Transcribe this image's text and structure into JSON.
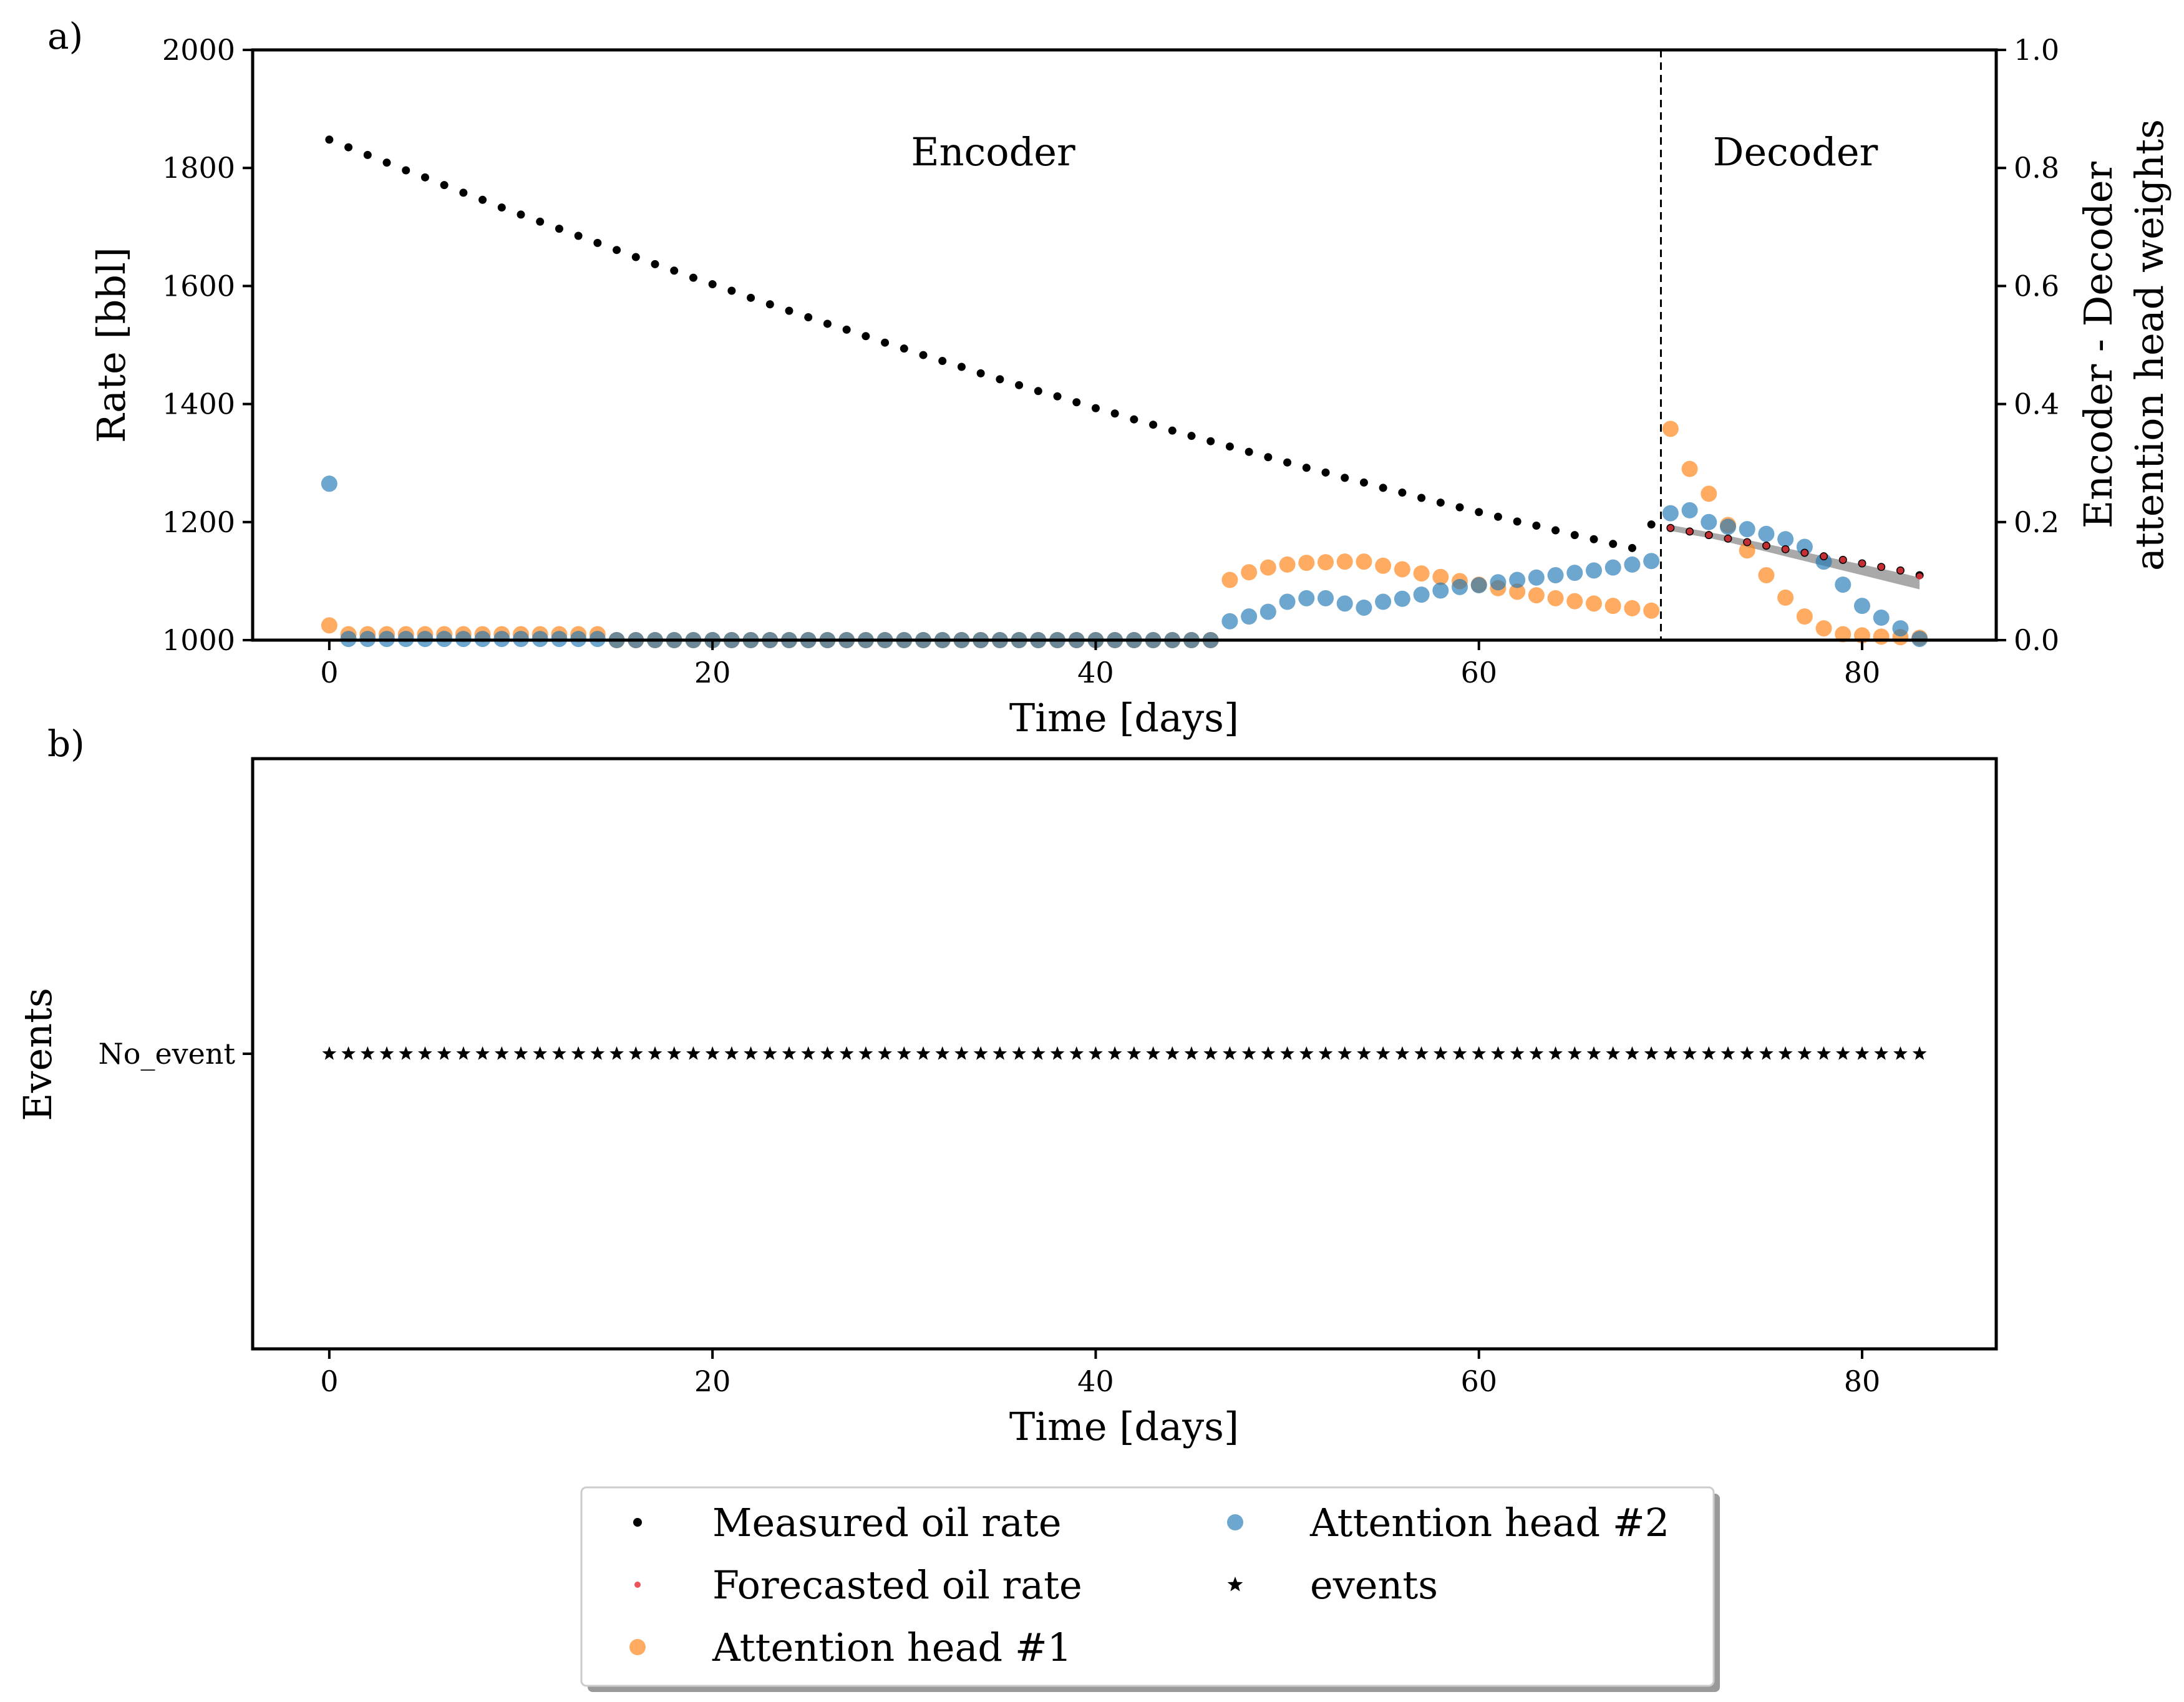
{
  "figure": {
    "panel_a_label": "a)",
    "panel_b_label": "b)"
  },
  "chart_data": [
    {
      "type": "scatter",
      "panel": "a",
      "xlabel": "Time [days]",
      "ylabel": "Rate [bbl]",
      "y2label_line1": "Encoder - Decoder",
      "y2label_line2": "attention head weights",
      "xlim": [
        -4,
        87
      ],
      "ylim": [
        1000,
        2000
      ],
      "y2lim": [
        0.0,
        1.0
      ],
      "xticks": [
        "0",
        "20",
        "40",
        "60",
        "80"
      ],
      "yticks": [
        "1000",
        "1200",
        "1400",
        "1600",
        "1800",
        "2000"
      ],
      "y2ticks": [
        "0.0",
        "0.2",
        "0.4",
        "0.6",
        "0.8",
        "1.0"
      ],
      "encoder_label": "Encoder",
      "decoder_label": "Decoder",
      "encoder_decoder_boundary_x": 69.5,
      "series": [
        {
          "name": "Measured oil rate",
          "axis": "left",
          "color": "#000000",
          "marker": "dot",
          "x": [
            0,
            1,
            2,
            3,
            4,
            5,
            6,
            7,
            8,
            9,
            10,
            11,
            12,
            13,
            14,
            15,
            16,
            17,
            18,
            19,
            20,
            21,
            22,
            23,
            24,
            25,
            26,
            27,
            28,
            29,
            30,
            31,
            32,
            33,
            34,
            35,
            36,
            37,
            38,
            39,
            40,
            41,
            42,
            43,
            44,
            45,
            46,
            47,
            48,
            49,
            50,
            51,
            52,
            53,
            54,
            55,
            56,
            57,
            58,
            59,
            60,
            61,
            62,
            63,
            64,
            65,
            66,
            67,
            68,
            69,
            70,
            71,
            72,
            73,
            74,
            75,
            76,
            77,
            78,
            79,
            80,
            81,
            82,
            83
          ],
          "y": [
            1848,
            1835,
            1822,
            1809,
            1796,
            1784,
            1771,
            1758,
            1746,
            1733,
            1721,
            1709,
            1697,
            1685,
            1673,
            1661,
            1649,
            1637,
            1626,
            1614,
            1603,
            1592,
            1580,
            1569,
            1558,
            1547,
            1536,
            1526,
            1515,
            1504,
            1494,
            1483,
            1473,
            1463,
            1452,
            1442,
            1432,
            1422,
            1413,
            1403,
            1393,
            1384,
            1374,
            1365,
            1355,
            1346,
            1337,
            1328,
            1319,
            1310,
            1301,
            1292,
            1284,
            1275,
            1267,
            1258,
            1250,
            1241,
            1233,
            1225,
            1217,
            1209,
            1201,
            1194,
            1186,
            1178,
            1171,
            1163,
            1156,
            1196,
            1190,
            1184,
            1178,
            1172,
            1166,
            1160,
            1154,
            1148,
            1142,
            1136,
            1130,
            1124,
            1118,
            1110
          ]
        },
        {
          "name": "Forecasted oil rate",
          "axis": "left",
          "color": "#e8363b",
          "marker": "dot",
          "x": [
            70,
            71,
            72,
            73,
            74,
            75,
            76,
            77,
            78,
            79,
            80,
            81,
            82,
            83
          ],
          "y": [
            1190,
            1184,
            1178,
            1172,
            1166,
            1160,
            1154,
            1148,
            1142,
            1136,
            1130,
            1124,
            1118,
            1108
          ],
          "band_upper": [
            1195,
            1189,
            1183,
            1177,
            1170,
            1163,
            1156,
            1149,
            1142,
            1135,
            1128,
            1121,
            1114,
            1106
          ],
          "band_lower": [
            1185,
            1179,
            1173,
            1166,
            1158,
            1150,
            1142,
            1134,
            1126,
            1118,
            1110,
            1102,
            1094,
            1086
          ]
        },
        {
          "name": "Attention head #1",
          "axis": "right",
          "color": "#ff7f0e",
          "marker": "circle",
          "x": [
            0,
            1,
            2,
            3,
            4,
            5,
            6,
            7,
            8,
            9,
            10,
            11,
            12,
            13,
            14,
            15,
            16,
            17,
            18,
            19,
            20,
            21,
            22,
            23,
            24,
            25,
            26,
            27,
            28,
            29,
            30,
            31,
            32,
            33,
            34,
            35,
            36,
            37,
            38,
            39,
            40,
            41,
            42,
            43,
            44,
            45,
            46,
            47,
            48,
            49,
            50,
            51,
            52,
            53,
            54,
            55,
            56,
            57,
            58,
            59,
            60,
            61,
            62,
            63,
            64,
            65,
            66,
            67,
            68,
            69,
            70,
            71,
            72,
            73,
            74,
            75,
            76,
            77,
            78,
            79,
            80,
            81,
            82,
            83
          ],
          "y": [
            0.025,
            0.01,
            0.01,
            0.01,
            0.01,
            0.01,
            0.01,
            0.01,
            0.01,
            0.01,
            0.01,
            0.01,
            0.01,
            0.01,
            0.01,
            0.0,
            0.0,
            0.0,
            0.0,
            0.0,
            0.0,
            0.0,
            0.0,
            0.0,
            0.0,
            0.0,
            0.0,
            0.0,
            0.0,
            0.0,
            0.0,
            0.0,
            0.0,
            0.0,
            0.0,
            0.0,
            0.0,
            0.0,
            0.0,
            0.0,
            0.0,
            0.0,
            0.0,
            0.0,
            0.0,
            0.0,
            0.0,
            0.102,
            0.115,
            0.123,
            0.128,
            0.131,
            0.132,
            0.133,
            0.133,
            0.126,
            0.12,
            0.113,
            0.107,
            0.1,
            0.094,
            0.088,
            0.082,
            0.076,
            0.071,
            0.066,
            0.062,
            0.058,
            0.054,
            0.05,
            0.358,
            0.29,
            0.248,
            0.195,
            0.152,
            0.11,
            0.072,
            0.04,
            0.02,
            0.01,
            0.008,
            0.006,
            0.005,
            0.004
          ]
        },
        {
          "name": "Attention head #2",
          "axis": "right",
          "color": "#1f77b4",
          "marker": "circle",
          "x": [
            0,
            1,
            2,
            3,
            4,
            5,
            6,
            7,
            8,
            9,
            10,
            11,
            12,
            13,
            14,
            15,
            16,
            17,
            18,
            19,
            20,
            21,
            22,
            23,
            24,
            25,
            26,
            27,
            28,
            29,
            30,
            31,
            32,
            33,
            34,
            35,
            36,
            37,
            38,
            39,
            40,
            41,
            42,
            43,
            44,
            45,
            46,
            47,
            48,
            49,
            50,
            51,
            52,
            53,
            54,
            55,
            56,
            57,
            58,
            59,
            60,
            61,
            62,
            63,
            64,
            65,
            66,
            67,
            68,
            69,
            70,
            71,
            72,
            73,
            74,
            75,
            76,
            77,
            78,
            79,
            80,
            81,
            82,
            83
          ],
          "y": [
            0.265,
            0.002,
            0.002,
            0.002,
            0.002,
            0.002,
            0.002,
            0.002,
            0.002,
            0.002,
            0.002,
            0.002,
            0.002,
            0.002,
            0.002,
            0.0,
            0.0,
            0.0,
            0.0,
            0.0,
            0.0,
            0.0,
            0.0,
            0.0,
            0.0,
            0.0,
            0.0,
            0.0,
            0.0,
            0.0,
            0.0,
            0.0,
            0.0,
            0.0,
            0.0,
            0.0,
            0.0,
            0.0,
            0.0,
            0.0,
            0.0,
            0.0,
            0.0,
            0.0,
            0.0,
            0.0,
            0.0,
            0.032,
            0.04,
            0.048,
            0.065,
            0.071,
            0.071,
            0.062,
            0.055,
            0.065,
            0.07,
            0.077,
            0.084,
            0.09,
            0.093,
            0.098,
            0.102,
            0.106,
            0.11,
            0.114,
            0.118,
            0.123,
            0.128,
            0.134,
            0.215,
            0.22,
            0.2,
            0.192,
            0.188,
            0.18,
            0.171,
            0.158,
            0.133,
            0.094,
            0.058,
            0.038,
            0.02,
            0.002
          ]
        }
      ]
    },
    {
      "type": "scatter",
      "panel": "b",
      "xlabel": "Time [days]",
      "ylabel": "Events",
      "xlim": [
        -4,
        87
      ],
      "xticks": [
        "0",
        "20",
        "40",
        "60",
        "80"
      ],
      "categories": [
        "No_event"
      ],
      "series": [
        {
          "name": "events",
          "color": "#000000",
          "marker": "star",
          "category": "No_event",
          "x_start": 0,
          "x_end": 83,
          "x_step": 1
        }
      ]
    }
  ],
  "legend": {
    "placement": "bottom-center",
    "items": [
      {
        "label": "Measured oil rate",
        "marker": "dot",
        "color": "#000000"
      },
      {
        "label": "Forecasted oil rate",
        "marker": "dot",
        "color": "#e8363b"
      },
      {
        "label": "Attention head #1",
        "marker": "circle",
        "color": "#ff7f0e"
      },
      {
        "label": "Attention head #2",
        "marker": "circle",
        "color": "#1f77b4"
      },
      {
        "label": "events",
        "marker": "star",
        "color": "#000000"
      }
    ]
  }
}
